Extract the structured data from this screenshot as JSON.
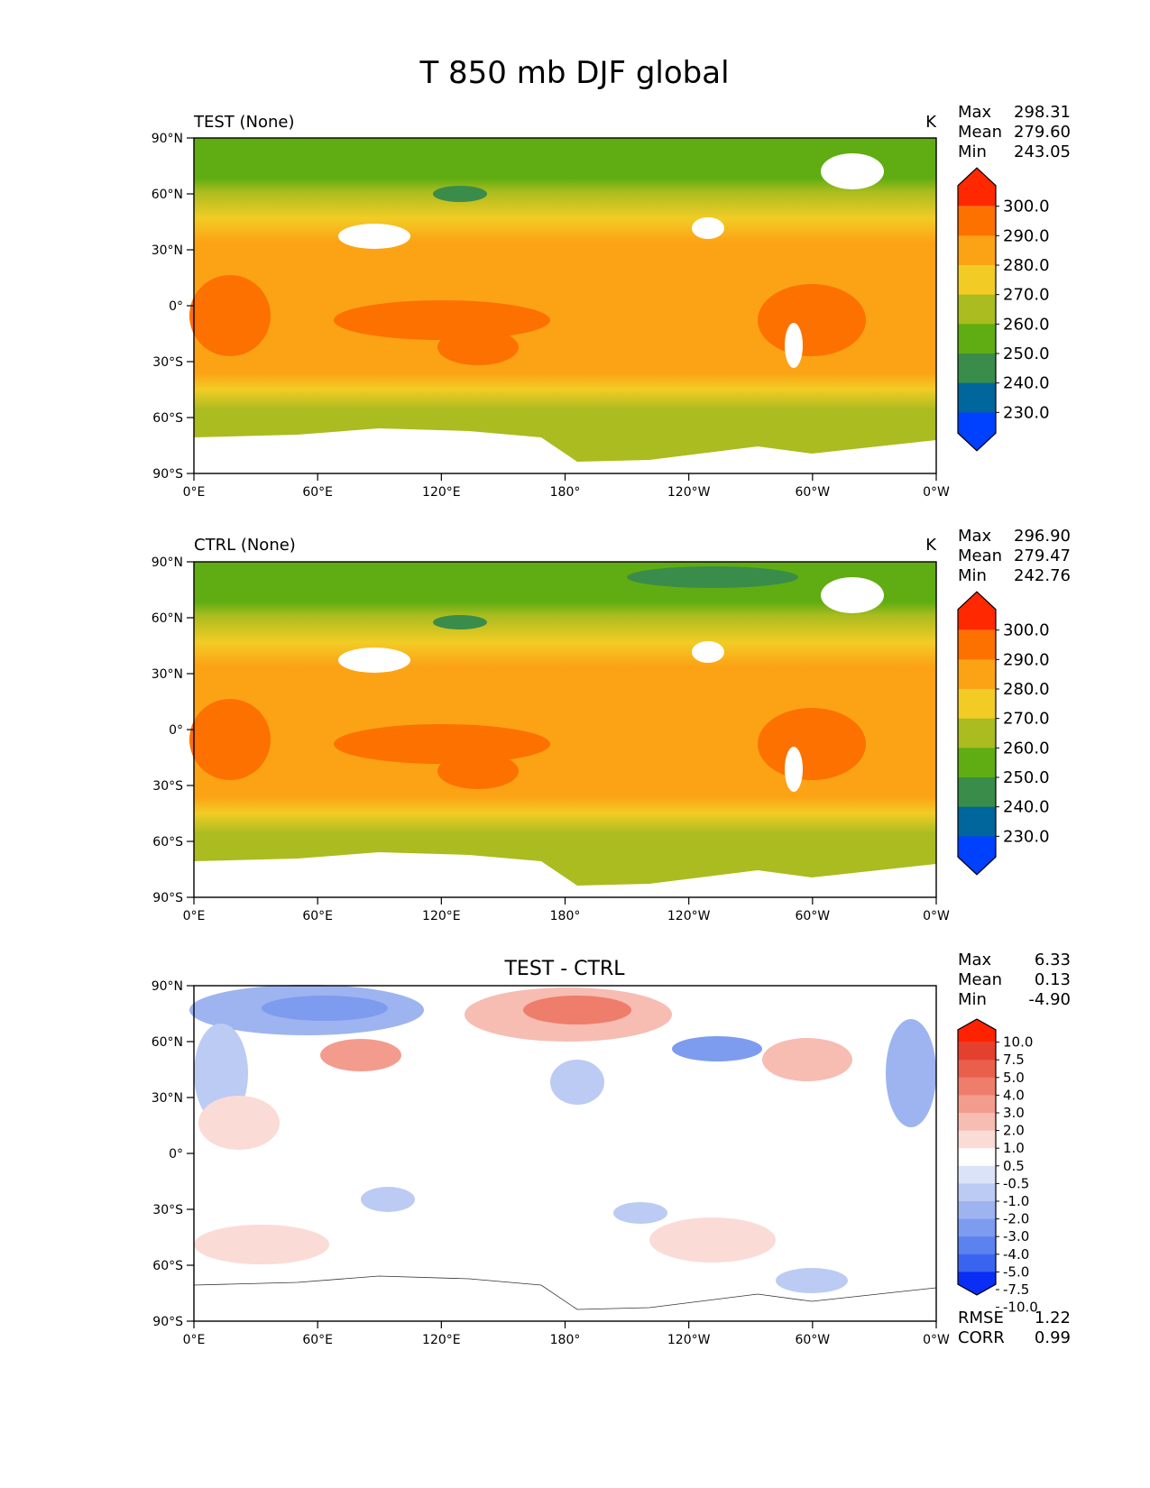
{
  "figure": {
    "title": "T 850 mb DJF global"
  },
  "colors": {
    "main_levels": [
      "#0040ff",
      "#00669b",
      "#3a8c4a",
      "#5fad12",
      "#aabc1f",
      "#f2cc25",
      "#fca315",
      "#fc7100",
      "#ff2800"
    ],
    "diff_levels": [
      "#0a2ef5",
      "#3a64f0",
      "#5c82ef",
      "#7d9cef",
      "#9db4f0",
      "#bccbf3",
      "#dae3f8",
      "#ffffff",
      "#fbdbd6",
      "#f7bcb2",
      "#f39c8e",
      "#ee7d6b",
      "#e95f4c",
      "#e3402f",
      "#ff2200"
    ],
    "land": "#ffffff"
  },
  "axes": {
    "yticks": [
      "90°N",
      "60°N",
      "30°N",
      "0°",
      "30°S",
      "60°S",
      "90°S"
    ],
    "xticks": [
      "0°E",
      "60°E",
      "120°E",
      "180°",
      "120°W",
      "60°W",
      "0°W"
    ]
  },
  "panels": [
    {
      "id": "test",
      "left_title": "TEST (None)",
      "center_title": "",
      "units": "K",
      "stats": [
        {
          "label": "Max",
          "value": "298.31"
        },
        {
          "label": "Mean",
          "value": "279.60"
        },
        {
          "label": "Min",
          "value": "243.05"
        }
      ],
      "colorbar_ticks": [
        "300.0",
        "290.0",
        "280.0",
        "270.0",
        "260.0",
        "250.0",
        "240.0",
        "230.0"
      ],
      "footer_stats": []
    },
    {
      "id": "ctrl",
      "left_title": "CTRL (None)",
      "center_title": "",
      "units": "K",
      "stats": [
        {
          "label": "Max",
          "value": "296.90"
        },
        {
          "label": "Mean",
          "value": "279.47"
        },
        {
          "label": "Min",
          "value": "242.76"
        }
      ],
      "colorbar_ticks": [
        "300.0",
        "290.0",
        "280.0",
        "270.0",
        "260.0",
        "250.0",
        "240.0",
        "230.0"
      ],
      "footer_stats": []
    },
    {
      "id": "diff",
      "left_title": "",
      "center_title": "TEST - CTRL",
      "units": "",
      "stats": [
        {
          "label": "Max",
          "value": "6.33"
        },
        {
          "label": "Mean",
          "value": "0.13"
        },
        {
          "label": "Min",
          "value": "-4.90"
        }
      ],
      "colorbar_ticks": [
        "10.0",
        "7.5",
        "5.0",
        "4.0",
        "3.0",
        "2.0",
        "1.0",
        "0.5",
        "-0.5",
        "-1.0",
        "-2.0",
        "-3.0",
        "-4.0",
        "-5.0",
        "-7.5",
        "-10.0"
      ],
      "footer_stats": [
        {
          "label": "RMSE",
          "value": "1.22"
        },
        {
          "label": "CORR",
          "value": "0.99"
        }
      ]
    }
  ]
}
